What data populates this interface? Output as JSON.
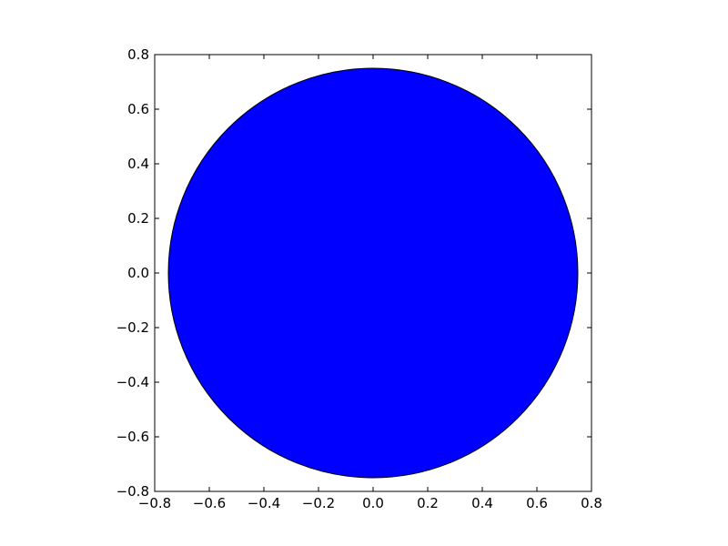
{
  "chart_data": {
    "type": "scatter",
    "title": "",
    "xlabel": "",
    "ylabel": "",
    "xlim": [
      -0.8,
      0.8
    ],
    "ylim": [
      -0.8,
      0.8
    ],
    "grid": false,
    "aspect": "equal",
    "xticks": [
      -0.8,
      -0.6,
      -0.4,
      -0.2,
      0.0,
      0.2,
      0.4,
      0.6,
      0.8
    ],
    "yticks": [
      -0.8,
      -0.6,
      -0.4,
      -0.2,
      0.0,
      0.2,
      0.4,
      0.6,
      0.8
    ],
    "xtick_labels": [
      "−0.8",
      "−0.6",
      "−0.4",
      "−0.2",
      "0.0",
      "0.2",
      "0.4",
      "0.6",
      "0.8"
    ],
    "ytick_labels": [
      "−0.8",
      "−0.6",
      "−0.4",
      "−0.2",
      "0.0",
      "0.2",
      "0.4",
      "0.6",
      "0.8"
    ],
    "shapes": [
      {
        "kind": "circle",
        "center": [
          0.0,
          0.0
        ],
        "radius": 0.75,
        "fill": "#0000ff",
        "edgecolor": "#000000"
      }
    ]
  }
}
